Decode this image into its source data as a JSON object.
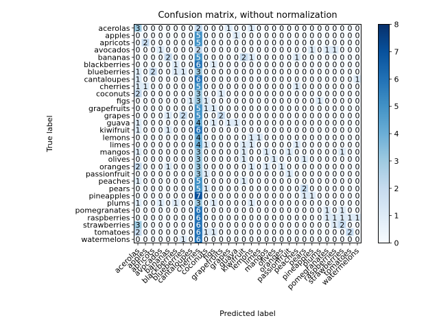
{
  "chart_data": {
    "type": "heatmap",
    "title": "Confusion matrix, without normalization",
    "xlabel": "Predicted label",
    "ylabel": "True label",
    "colormap": "Blues",
    "vmin": 0,
    "vmax": 8,
    "colorbar_ticks": [
      0,
      1,
      2,
      3,
      4,
      5,
      6,
      7,
      8
    ],
    "labels": [
      "acerolas",
      "apples",
      "apricots",
      "avocados",
      "bananas",
      "blackberries",
      "blueberries",
      "cantaloupes",
      "cherries",
      "coconuts",
      "figs",
      "grapefruits",
      "grapes",
      "guava",
      "kiwifruit",
      "lemons",
      "limes",
      "mangos",
      "olives",
      "oranges",
      "passionfruit",
      "peaches",
      "pears",
      "pineapples",
      "plums",
      "pomegranates",
      "raspberries",
      "strawberries",
      "tomatoes",
      "watermelons"
    ],
    "matrix": [
      [
        3,
        0,
        0,
        0,
        0,
        0,
        0,
        0,
        2,
        0,
        0,
        0,
        1,
        0,
        0,
        1,
        0,
        0,
        0,
        0,
        0,
        0,
        0,
        0,
        0,
        0,
        0,
        0,
        0,
        0
      ],
      [
        0,
        0,
        0,
        0,
        0,
        0,
        0,
        0,
        5,
        0,
        0,
        0,
        0,
        1,
        0,
        0,
        0,
        0,
        0,
        0,
        0,
        0,
        0,
        0,
        0,
        0,
        0,
        0,
        0,
        0
      ],
      [
        0,
        2,
        0,
        0,
        0,
        0,
        0,
        0,
        5,
        0,
        0,
        0,
        0,
        0,
        0,
        0,
        0,
        0,
        0,
        0,
        0,
        0,
        0,
        0,
        0,
        0,
        0,
        0,
        0,
        0
      ],
      [
        0,
        0,
        0,
        1,
        0,
        0,
        0,
        0,
        2,
        0,
        0,
        0,
        0,
        0,
        0,
        0,
        0,
        0,
        0,
        0,
        0,
        0,
        0,
        1,
        0,
        1,
        1,
        0,
        0,
        0
      ],
      [
        0,
        0,
        0,
        0,
        2,
        0,
        0,
        0,
        5,
        0,
        0,
        0,
        0,
        0,
        2,
        1,
        0,
        0,
        0,
        0,
        0,
        1,
        0,
        0,
        0,
        0,
        0,
        0,
        0,
        0
      ],
      [
        0,
        0,
        0,
        0,
        0,
        1,
        0,
        0,
        6,
        0,
        1,
        0,
        0,
        0,
        0,
        0,
        0,
        0,
        0,
        0,
        0,
        0,
        0,
        0,
        0,
        0,
        0,
        0,
        0,
        0
      ],
      [
        1,
        0,
        2,
        0,
        0,
        1,
        1,
        0,
        3,
        0,
        0,
        0,
        0,
        0,
        0,
        0,
        0,
        0,
        0,
        0,
        0,
        0,
        0,
        0,
        0,
        0,
        0,
        0,
        0,
        0
      ],
      [
        1,
        0,
        0,
        0,
        0,
        0,
        0,
        0,
        6,
        0,
        0,
        0,
        0,
        0,
        0,
        0,
        0,
        0,
        0,
        0,
        0,
        0,
        0,
        0,
        0,
        0,
        0,
        0,
        0,
        1
      ],
      [
        1,
        1,
        0,
        0,
        0,
        0,
        0,
        0,
        5,
        0,
        0,
        0,
        0,
        0,
        0,
        0,
        0,
        0,
        0,
        0,
        0,
        1,
        0,
        0,
        0,
        0,
        0,
        0,
        0,
        0
      ],
      [
        2,
        0,
        0,
        0,
        0,
        0,
        0,
        0,
        3,
        0,
        0,
        1,
        0,
        0,
        0,
        0,
        0,
        0,
        0,
        0,
        0,
        0,
        0,
        0,
        0,
        0,
        0,
        0,
        0,
        0
      ],
      [
        0,
        0,
        0,
        0,
        0,
        0,
        0,
        1,
        3,
        1,
        0,
        0,
        0,
        0,
        0,
        0,
        0,
        0,
        0,
        0,
        0,
        0,
        0,
        0,
        1,
        0,
        0,
        0,
        0,
        0
      ],
      [
        0,
        0,
        0,
        0,
        0,
        0,
        0,
        0,
        5,
        1,
        1,
        0,
        0,
        0,
        0,
        0,
        0,
        0,
        0,
        0,
        0,
        0,
        0,
        0,
        0,
        0,
        0,
        0,
        0,
        0
      ],
      [
        0,
        0,
        0,
        0,
        1,
        0,
        2,
        0,
        5,
        0,
        0,
        2,
        0,
        0,
        0,
        0,
        0,
        0,
        0,
        0,
        0,
        0,
        0,
        0,
        0,
        0,
        0,
        0,
        0,
        0
      ],
      [
        1,
        0,
        0,
        0,
        0,
        0,
        0,
        0,
        4,
        0,
        1,
        0,
        1,
        1,
        0,
        0,
        0,
        0,
        0,
        0,
        0,
        0,
        0,
        0,
        0,
        0,
        0,
        0,
        0,
        0
      ],
      [
        1,
        0,
        0,
        0,
        1,
        0,
        0,
        0,
        6,
        0,
        0,
        0,
        0,
        0,
        0,
        0,
        0,
        0,
        0,
        0,
        0,
        0,
        0,
        0,
        0,
        0,
        0,
        0,
        0,
        0
      ],
      [
        0,
        0,
        0,
        0,
        0,
        0,
        0,
        0,
        4,
        0,
        0,
        0,
        0,
        0,
        0,
        1,
        1,
        0,
        0,
        0,
        0,
        0,
        0,
        0,
        0,
        0,
        0,
        0,
        0,
        0
      ],
      [
        0,
        0,
        0,
        0,
        0,
        0,
        0,
        0,
        4,
        1,
        0,
        0,
        0,
        0,
        1,
        1,
        0,
        0,
        0,
        0,
        0,
        1,
        0,
        0,
        0,
        0,
        0,
        0,
        0,
        0
      ],
      [
        1,
        0,
        0,
        0,
        0,
        0,
        0,
        0,
        3,
        0,
        0,
        0,
        0,
        0,
        1,
        0,
        0,
        1,
        0,
        0,
        1,
        0,
        0,
        0,
        0,
        0,
        0,
        1,
        0,
        0
      ],
      [
        0,
        0,
        0,
        0,
        0,
        0,
        0,
        0,
        3,
        0,
        0,
        0,
        0,
        0,
        1,
        0,
        0,
        0,
        1,
        0,
        0,
        0,
        1,
        0,
        0,
        0,
        0,
        0,
        0,
        0
      ],
      [
        2,
        0,
        0,
        0,
        1,
        0,
        0,
        0,
        3,
        0,
        0,
        0,
        0,
        0,
        0,
        1,
        0,
        1,
        0,
        1,
        0,
        0,
        0,
        0,
        0,
        0,
        0,
        0,
        0,
        0
      ],
      [
        0,
        0,
        0,
        0,
        0,
        0,
        0,
        0,
        3,
        1,
        0,
        0,
        0,
        0,
        0,
        0,
        0,
        0,
        0,
        0,
        1,
        0,
        0,
        0,
        0,
        0,
        0,
        0,
        0,
        0
      ],
      [
        1,
        0,
        0,
        0,
        0,
        0,
        0,
        0,
        5,
        0,
        0,
        0,
        0,
        0,
        1,
        0,
        0,
        0,
        0,
        0,
        0,
        0,
        0,
        0,
        0,
        0,
        0,
        0,
        0,
        0
      ],
      [
        0,
        0,
        0,
        0,
        0,
        0,
        0,
        0,
        5,
        1,
        0,
        0,
        0,
        0,
        0,
        0,
        0,
        0,
        0,
        0,
        0,
        0,
        2,
        0,
        0,
        0,
        0,
        0,
        0,
        0
      ],
      [
        0,
        0,
        0,
        0,
        0,
        0,
        0,
        0,
        7,
        0,
        0,
        0,
        0,
        0,
        0,
        0,
        0,
        0,
        0,
        0,
        0,
        0,
        1,
        1,
        0,
        0,
        0,
        0,
        0,
        0
      ],
      [
        1,
        0,
        0,
        1,
        0,
        1,
        0,
        0,
        3,
        0,
        1,
        0,
        0,
        0,
        0,
        1,
        0,
        0,
        0,
        0,
        0,
        0,
        0,
        0,
        0,
        0,
        0,
        0,
        0,
        0
      ],
      [
        0,
        0,
        0,
        0,
        0,
        0,
        0,
        0,
        6,
        0,
        0,
        0,
        0,
        0,
        0,
        0,
        0,
        0,
        0,
        0,
        0,
        0,
        0,
        0,
        0,
        1,
        0,
        1,
        0,
        0
      ],
      [
        0,
        0,
        0,
        0,
        0,
        0,
        0,
        0,
        6,
        0,
        0,
        0,
        0,
        0,
        0,
        0,
        0,
        0,
        0,
        0,
        0,
        0,
        0,
        0,
        0,
        1,
        1,
        1,
        1,
        1
      ],
      [
        3,
        0,
        0,
        0,
        0,
        0,
        0,
        0,
        6,
        0,
        0,
        0,
        0,
        0,
        0,
        0,
        0,
        0,
        0,
        0,
        0,
        0,
        0,
        0,
        0,
        0,
        1,
        2,
        0,
        0
      ],
      [
        2,
        0,
        0,
        0,
        0,
        0,
        0,
        0,
        6,
        1,
        1,
        0,
        0,
        0,
        0,
        0,
        0,
        0,
        0,
        0,
        0,
        0,
        0,
        0,
        0,
        0,
        0,
        0,
        2,
        0
      ],
      [
        0,
        0,
        0,
        0,
        0,
        0,
        1,
        0,
        6,
        0,
        0,
        0,
        0,
        0,
        0,
        0,
        0,
        0,
        0,
        0,
        0,
        0,
        0,
        0,
        0,
        0,
        0,
        0,
        0,
        0
      ]
    ]
  }
}
